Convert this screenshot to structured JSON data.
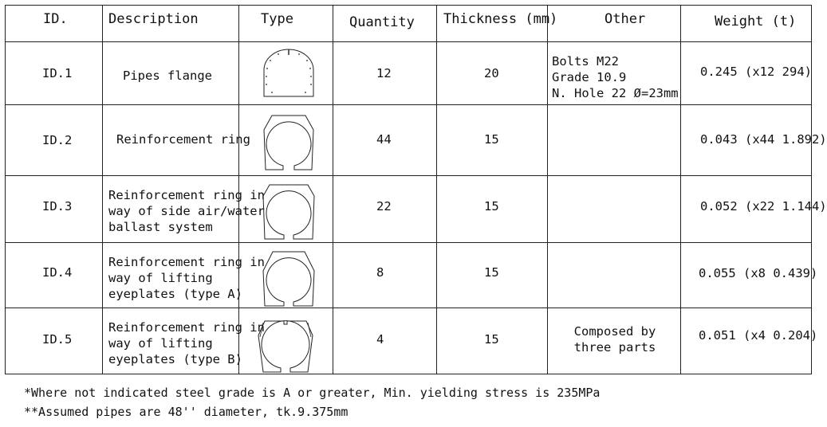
{
  "table": {
    "headers": [
      "ID.",
      "Description",
      "Type",
      "Quantity",
      "Thickness (mm)",
      "Other",
      "Weight (t)"
    ],
    "rows": [
      {
        "id": "ID.1",
        "description": "Pipes flange",
        "type_icon": "flange-profile-icon",
        "quantity": "12",
        "thickness": "20",
        "other": "Bolts M22\nGrade 10.9\nN. Hole 22 Ø=23mm",
        "weight": "0.245 (x12 294)"
      },
      {
        "id": "ID.2",
        "description": "Reinforcement ring",
        "type_icon": "ring-profile-icon",
        "quantity": "44",
        "thickness": "15",
        "other": "",
        "weight": "0.043 (x44 1.892)"
      },
      {
        "id": "ID.3",
        "description": "Reinforcement ring in\nway of side air/water\nballast system",
        "type_icon": "ring-profile-icon",
        "quantity": "22",
        "thickness": "15",
        "other": "",
        "weight": "0.052 (x22 1.144)"
      },
      {
        "id": "ID.4",
        "description": "Reinforcement ring in\nway of lifting\neyeplates (type A)",
        "type_icon": "ring-profile-icon",
        "quantity": "8",
        "thickness": "15",
        "other": "",
        "weight": "0.055 (x8 0.439)"
      },
      {
        "id": "ID.5",
        "description": "Reinforcement ring in\nway of lifting\neyeplates (type B)",
        "type_icon": "split-ring-profile-icon",
        "quantity": "4",
        "thickness": "15",
        "other": "Composed by\nthree parts",
        "weight": "0.051 (x4 0.204)"
      }
    ]
  },
  "notes": [
    "*Where not indicated steel grade is A or greater, Min. yielding stress is 235MPa",
    "**Assumed pipes are 48'' diameter, tk.9.375mm"
  ]
}
